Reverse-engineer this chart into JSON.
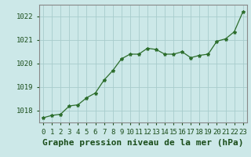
{
  "x": [
    0,
    1,
    2,
    3,
    4,
    5,
    6,
    7,
    8,
    9,
    10,
    11,
    12,
    13,
    14,
    15,
    16,
    17,
    18,
    19,
    20,
    21,
    22,
    23
  ],
  "y": [
    1017.7,
    1017.8,
    1017.85,
    1018.2,
    1018.25,
    1018.55,
    1018.75,
    1019.3,
    1019.7,
    1020.2,
    1020.4,
    1020.4,
    1020.65,
    1020.6,
    1020.4,
    1020.4,
    1020.5,
    1020.25,
    1020.35,
    1020.4,
    1020.95,
    1021.05,
    1021.35,
    1022.2
  ],
  "line_color": "#2d6e2d",
  "marker": "*",
  "marker_size": 3,
  "background_color": "#cce8e8",
  "grid_color": "#a8cccc",
  "xlabel": "Graphe pression niveau de la mer (hPa)",
  "xlabel_fontsize": 8,
  "yticks": [
    1018,
    1019,
    1020,
    1021,
    1022
  ],
  "xticks": [
    0,
    1,
    2,
    3,
    4,
    5,
    6,
    7,
    8,
    9,
    10,
    11,
    12,
    13,
    14,
    15,
    16,
    17,
    18,
    19,
    20,
    21,
    22,
    23
  ],
  "ylim": [
    1017.5,
    1022.5
  ],
  "xlim": [
    -0.5,
    23.5
  ],
  "tick_color": "#1a4d1a",
  "tick_fontsize": 6.5,
  "label_fontweight": "bold",
  "spine_color": "#888888"
}
